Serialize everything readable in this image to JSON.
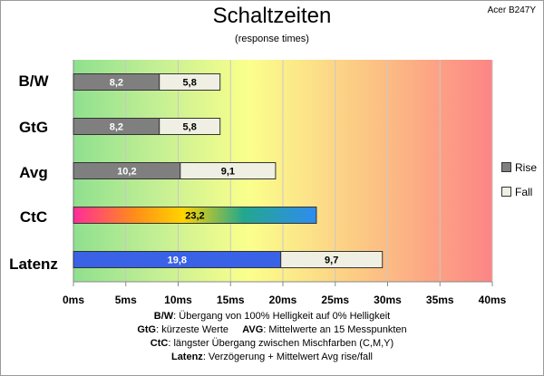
{
  "header": {
    "title": "Schaltzeiten",
    "subtitle": "(response times)",
    "model": "Acer B247Y"
  },
  "chart_data": {
    "type": "bar",
    "orientation": "horizontal",
    "stacked": true,
    "title": "Schaltzeiten",
    "subtitle": "(response times)",
    "categories": [
      "B/W",
      "GtG",
      "Avg",
      "CtC",
      "Latenz"
    ],
    "series": [
      {
        "name": "Rise",
        "values": [
          8.2,
          8.2,
          10.2,
          23.2,
          19.8
        ],
        "color": "#7f7f7f"
      },
      {
        "name": "Fall",
        "values": [
          5.8,
          5.8,
          9.1,
          null,
          9.7
        ],
        "color": "#efefe3"
      }
    ],
    "labels": {
      "rise": [
        "8,2",
        "8,2",
        "10,2",
        "23,2",
        "19,8"
      ],
      "fall": [
        "5,8",
        "5,8",
        "9,1",
        "",
        "9,7"
      ]
    },
    "special_colors": {
      "CtC": "rainbow gradient",
      "Latenz": "#3a62e6"
    },
    "x_ticks": [
      "0ms",
      "5ms",
      "10ms",
      "15ms",
      "20ms",
      "25ms",
      "30ms",
      "35ms",
      "40ms"
    ],
    "xlim": [
      0,
      40
    ],
    "grid": true,
    "legend": "right",
    "background": "green-yellow-orange-red gradient"
  },
  "notes": {
    "line1_key": "B/W",
    "line1_text": ":  Übergang von 100% Helligkeit auf 0% Helligkeit",
    "line2_key_a": "GtG",
    "line2_text_a": ": kürzeste  Werte",
    "line2_key_b": "AVG",
    "line2_text_b": ": Mittelwerte  an 15 Messpunkten",
    "line3_key": "CtC",
    "line3_text": ": längster Übergang  zwischen Mischfarben (C,M,Y)",
    "line4_key": "Latenz",
    "line4_text": ": Verzögerung  + Mittelwert Avg rise/fall"
  }
}
